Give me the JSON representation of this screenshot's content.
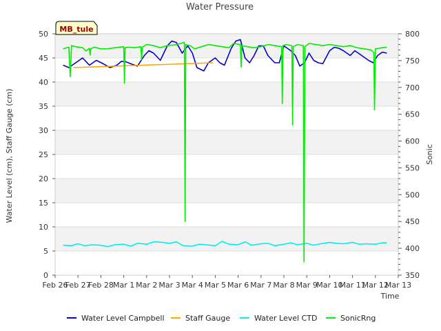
{
  "chart_data": {
    "type": "line",
    "title": "Water Pressure",
    "site_label": "MB_tule",
    "xlabel": "Time",
    "ylabel": "Water Level (cm), Staff Gauge (cm)",
    "y2label": "Sonic",
    "x_unit": "days since Feb 26",
    "xlim": [
      0,
      15
    ],
    "ylim": [
      0,
      50
    ],
    "y2lim": [
      350,
      800
    ],
    "x_ticks": [
      {
        "x": 0,
        "label": "Feb 26"
      },
      {
        "x": 1,
        "label": "Feb 27"
      },
      {
        "x": 2,
        "label": "Feb 28"
      },
      {
        "x": 3,
        "label": "Mar 1"
      },
      {
        "x": 4,
        "label": "Mar 2"
      },
      {
        "x": 5,
        "label": "Mar 3"
      },
      {
        "x": 6,
        "label": "Mar 4"
      },
      {
        "x": 7,
        "label": "Mar 5"
      },
      {
        "x": 8,
        "label": "Mar 6"
      },
      {
        "x": 9,
        "label": "Mar 7"
      },
      {
        "x": 10,
        "label": "Mar 8"
      },
      {
        "x": 11,
        "label": "Mar 9"
      },
      {
        "x": 12,
        "label": "Mar 10"
      },
      {
        "x": 13,
        "label": "Mar 11"
      },
      {
        "x": 14,
        "label": "Mar 12"
      },
      {
        "x": 15,
        "label": "Mar 13"
      }
    ],
    "y_ticks": [
      "0",
      "5",
      "10",
      "15",
      "20",
      "25",
      "30",
      "35",
      "40",
      "45",
      "50"
    ],
    "y2_ticks": [
      "350",
      "400",
      "450",
      "500",
      "550",
      "600",
      "650",
      "700",
      "750",
      "800"
    ],
    "grid": true,
    "bands": true,
    "legend_position": "bottom",
    "series": [
      {
        "name": "Water Level Campbell",
        "color": "#0000cc",
        "axis": "left",
        "x": [
          0.35,
          0.6,
          0.9,
          1.2,
          1.5,
          1.8,
          2.1,
          2.4,
          2.7,
          2.9,
          3.1,
          3.3,
          3.6,
          3.9,
          4.1,
          4.3,
          4.6,
          4.9,
          5.1,
          5.3,
          5.55,
          5.8,
          6.0,
          6.2,
          6.5,
          6.7,
          7.0,
          7.2,
          7.4,
          7.7,
          7.9,
          8.1,
          8.3,
          8.5,
          8.7,
          8.9,
          9.1,
          9.3,
          9.6,
          9.8,
          10.0,
          10.3,
          10.5,
          10.7,
          10.9,
          11.1,
          11.3,
          11.5,
          11.7,
          12.0,
          12.2,
          12.4,
          12.6,
          12.9,
          13.1,
          13.4,
          13.7,
          13.9,
          14.1,
          14.3,
          14.5
        ],
        "y": [
          43.5,
          43.0,
          44.0,
          45.0,
          43.5,
          44.5,
          43.8,
          43.0,
          43.5,
          44.3,
          44.2,
          43.8,
          43.3,
          45.5,
          46.5,
          46.0,
          44.5,
          47.5,
          48.5,
          48.2,
          46.0,
          47.5,
          46.0,
          43.0,
          42.3,
          44.0,
          45.0,
          44.0,
          43.5,
          47.0,
          48.5,
          48.8,
          45.0,
          44.0,
          45.5,
          47.5,
          47.5,
          45.5,
          44.0,
          44.0,
          47.5,
          46.5,
          45.5,
          43.3,
          44.0,
          46.0,
          44.5,
          44.0,
          43.8,
          46.5,
          47.2,
          47.0,
          46.5,
          45.5,
          46.5,
          45.5,
          44.5,
          44.0,
          45.5,
          46.2,
          46.0
        ]
      },
      {
        "name": "Staff Gauge",
        "color": "#ffa500",
        "axis": "left",
        "x": [
          0.8,
          6.9
        ],
        "y": [
          43.0,
          44.0
        ]
      },
      {
        "name": "Water Level CTD",
        "color": "#00eeee",
        "axis": "left",
        "x": [
          0.35,
          0.7,
          1.0,
          1.3,
          1.6,
          2.0,
          2.3,
          2.6,
          3.0,
          3.3,
          3.6,
          4.0,
          4.3,
          4.7,
          5.0,
          5.3,
          5.6,
          6.0,
          6.3,
          6.6,
          7.0,
          7.3,
          7.6,
          8.0,
          8.3,
          8.6,
          9.0,
          9.3,
          9.6,
          10.0,
          10.3,
          10.6,
          11.0,
          11.3,
          11.6,
          12.0,
          12.3,
          12.6,
          13.0,
          13.3,
          13.6,
          14.0,
          14.3,
          14.5
        ],
        "y": [
          6.2,
          6.1,
          6.5,
          6.1,
          6.3,
          6.2,
          5.9,
          6.3,
          6.4,
          6.0,
          6.6,
          6.4,
          6.9,
          6.8,
          6.6,
          6.9,
          6.1,
          6.0,
          6.4,
          6.3,
          6.1,
          7.0,
          6.4,
          6.3,
          6.9,
          6.2,
          6.5,
          6.6,
          6.1,
          6.4,
          6.7,
          6.3,
          6.6,
          6.2,
          6.5,
          6.8,
          6.6,
          6.5,
          6.8,
          6.4,
          6.5,
          6.4,
          6.7,
          6.7
        ]
      },
      {
        "name": "SonicRng",
        "color": "#00ee00",
        "axis": "right",
        "x": [
          0.35,
          0.6,
          0.66,
          0.72,
          0.9,
          1.2,
          1.35,
          1.5,
          1.53,
          1.56,
          1.7,
          2.0,
          2.3,
          2.6,
          2.8,
          3.0,
          3.03,
          3.06,
          3.2,
          3.5,
          3.75,
          3.78,
          3.81,
          4.0,
          4.3,
          4.6,
          4.9,
          5.2,
          5.5,
          5.65,
          5.68,
          5.71,
          5.9,
          6.1,
          6.4,
          6.7,
          7.0,
          7.3,
          7.6,
          7.8,
          8.1,
          8.13,
          8.16,
          8.4,
          8.7,
          9.0,
          9.3,
          9.6,
          9.9,
          9.93,
          9.96,
          10.1,
          10.35,
          10.38,
          10.41,
          10.6,
          10.85,
          10.88,
          10.92,
          11.1,
          11.4,
          11.7,
          12.0,
          12.3,
          12.6,
          12.9,
          13.2,
          13.5,
          13.8,
          13.93,
          13.96,
          14.0,
          14.3,
          14.5
        ],
        "y": [
          772,
          775,
          720,
          778,
          776,
          774,
          768,
          773,
          760,
          772,
          775,
          772,
          772,
          774,
          775,
          776,
          708,
          774,
          775,
          774,
          776,
          752,
          775,
          780,
          778,
          774,
          778,
          779,
          782,
          784,
          450,
          780,
          778,
          772,
          776,
          780,
          778,
          776,
          774,
          782,
          780,
          738,
          778,
          776,
          774,
          776,
          780,
          778,
          776,
          670,
          778,
          780,
          778,
          630,
          776,
          780,
          778,
          375,
          776,
          782,
          780,
          778,
          780,
          778,
          776,
          778,
          774,
          772,
          770,
          765,
          658,
          772,
          774,
          775
        ]
      }
    ]
  }
}
